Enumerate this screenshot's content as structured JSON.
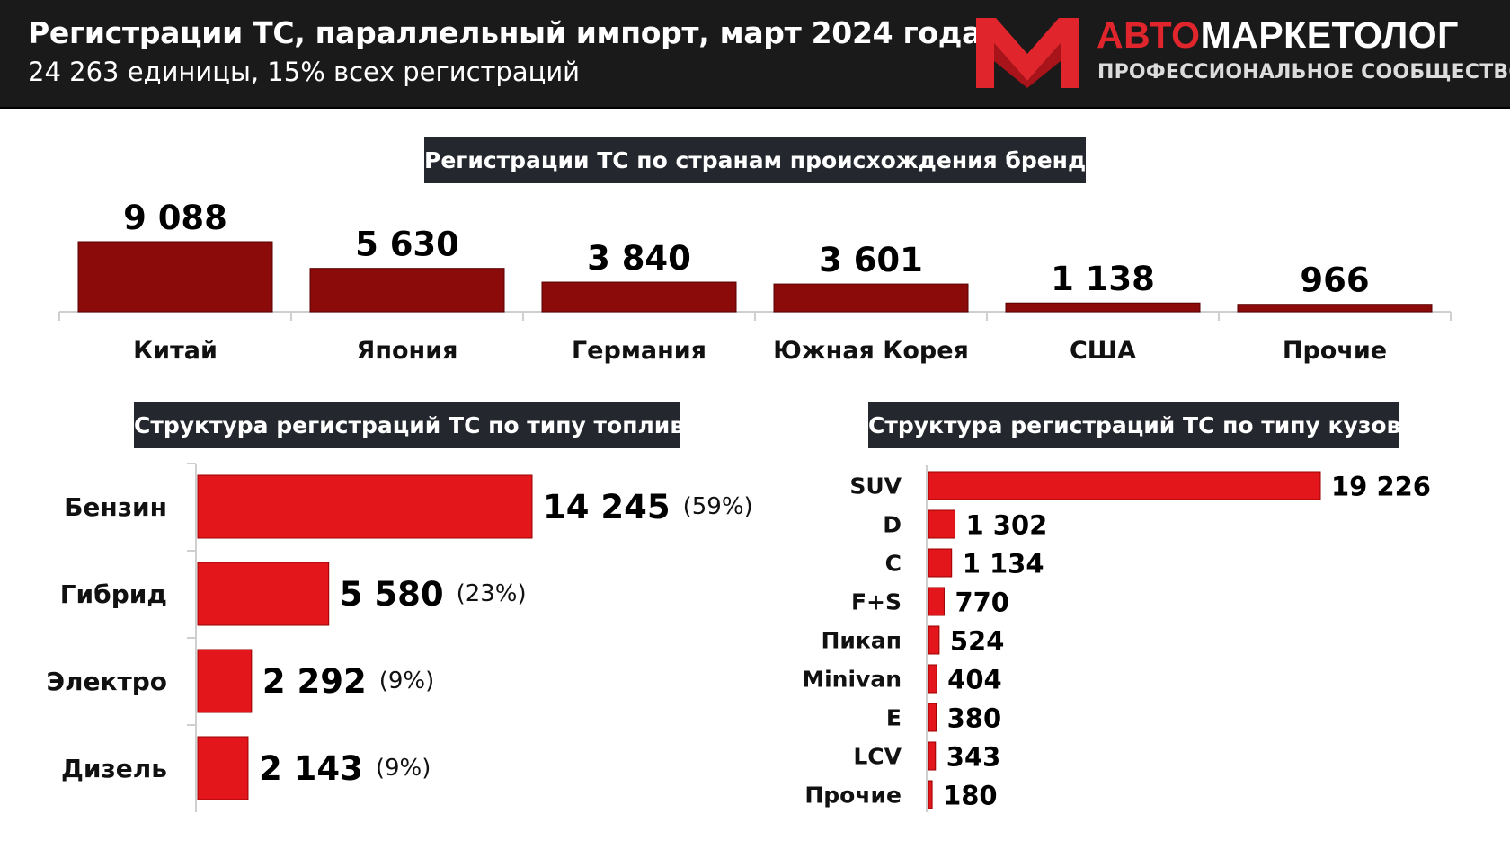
{
  "header": {
    "title": "Регистрации ТС, параллельный импорт, март 2024 года",
    "subtitle": "24 263 единицы, 15% всех регистраций",
    "logo": {
      "brand_red": "АВТО",
      "brand_white": "МАРКЕТОЛОГ",
      "tagline": "ПРОФЕССИОНАЛЬНОЕ СООБЩЕСТВО"
    }
  },
  "colors": {
    "header_bg": "#1a1a1a",
    "section_title_bg": "#24282e",
    "country_bar": "#8b0a0a",
    "fuel_body_bar": "#e3161c",
    "brand_red": "#e0262c"
  },
  "chart_data": [
    {
      "type": "bar",
      "title": "Регистрации ТС по странам происхождения бренда",
      "orientation": "vertical",
      "categories": [
        "Китай",
        "Япония",
        "Германия",
        "Южная Корея",
        "США",
        "Прочие"
      ],
      "values": [
        9088,
        5630,
        3840,
        3601,
        1138,
        966
      ],
      "value_labels": [
        "9 088",
        "5 630",
        "3 840",
        "3 601",
        "1 138",
        "966"
      ],
      "ylim": [
        0,
        9088
      ],
      "grid": false,
      "legend": "none"
    },
    {
      "type": "bar",
      "title": "Структура регистраций ТС по типу топлива",
      "orientation": "horizontal",
      "categories": [
        "Бензин",
        "Гибрид",
        "Электро",
        "Дизель"
      ],
      "values": [
        14245,
        5580,
        2292,
        2143
      ],
      "value_labels": [
        "14 245",
        "5 580",
        "2 292",
        "2 143"
      ],
      "shares": [
        "(59%)",
        "(23%)",
        "(9%)",
        "(9%)"
      ],
      "xlim": [
        0,
        14245
      ],
      "grid": false,
      "legend": "none"
    },
    {
      "type": "bar",
      "title": "Структура регистраций ТС по типу кузова",
      "orientation": "horizontal",
      "categories": [
        "SUV",
        "D",
        "C",
        "F+S",
        "Пикап",
        "Minivan",
        "E",
        "LCV",
        "Прочие"
      ],
      "values": [
        19226,
        1302,
        1134,
        770,
        524,
        404,
        380,
        343,
        180
      ],
      "value_labels": [
        "19 226",
        "1 302",
        "1 134",
        "770",
        "524",
        "404",
        "380",
        "343",
        "180"
      ],
      "xlim": [
        0,
        19226
      ],
      "grid": false,
      "legend": "none"
    }
  ]
}
